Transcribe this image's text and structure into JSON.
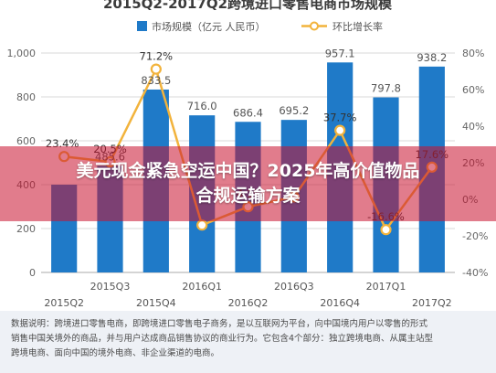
{
  "chart_data": {
    "type": "bar",
    "title": "2015Q2-2017Q2跨境进口零售电商市场规模",
    "categories": [
      "2015Q2",
      "2015Q3",
      "2015Q4",
      "2016Q1",
      "2016Q2",
      "2016Q3",
      "2016Q4",
      "2017Q1",
      "2017Q2"
    ],
    "x_tick_labels": [
      "2015Q2",
      "2015Q3",
      "2015Q4",
      "2016Q1",
      "2016Q2",
      "2016Q3",
      "2016Q4",
      "2017Q1",
      "2017Q2"
    ],
    "series": [
      {
        "name": "市场规模（亿元 人民币）",
        "kind": "bar",
        "axis": "left",
        "values": [
          400,
          485.6,
          833.5,
          716.0,
          686.4,
          695.2,
          957.1,
          797.8,
          938.2
        ],
        "labels": [
          "",
          "485.6",
          "833.5",
          "716.0",
          "686.4",
          "695.2",
          "957.1",
          "797.8",
          "938.2"
        ]
      },
      {
        "name": "环比增长率",
        "kind": "line",
        "axis": "right",
        "values": [
          23.4,
          20.5,
          71.2,
          -14.1,
          -4.1,
          1.3,
          37.7,
          -16.6,
          17.6
        ],
        "labels": [
          "23.4%",
          "20.5%",
          "71.2%",
          "",
          "-4.1%",
          "",
          "37.7%",
          "-16.6%",
          "17.6%"
        ]
      }
    ],
    "y_left_ticks": [
      "1,000",
      "800",
      "600",
      "400",
      "200",
      "0"
    ],
    "y_right_ticks": [
      "80%",
      "60%",
      "40%",
      "20%",
      "0%",
      "-20%",
      "-40%"
    ],
    "ylim": [
      0,
      1000
    ],
    "ylim_right": [
      -40,
      80
    ],
    "grid": true,
    "legend_position": "top",
    "colors": {
      "bar": "#1f7ac8",
      "line": "#f2b33c",
      "marker_fill": "#ffffff",
      "grid": "#d9d9d9"
    }
  },
  "note": {
    "lines": [
      "数据说明：跨境进口零售电商，即跨境进口零售电子商务，是以互联网为平台，向中国境内用户以零售的形式",
      "销售中国关境外的商品，并与用户达成商品销售协议的商业行为。它包含4个部分：独立跨境电商、从属主站型",
      "跨境电商、面向中国的境外电商、非企业渠道的电商。"
    ]
  },
  "overlay": {
    "headline_line1": "美元现金紧急空运中国？2025年高价值物品",
    "headline_line2": "合规运输方案"
  }
}
